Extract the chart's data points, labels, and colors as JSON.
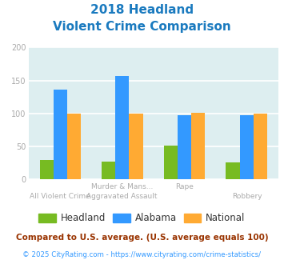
{
  "title_line1": "2018 Headland",
  "title_line2": "Violent Crime Comparison",
  "title_color": "#1a7abf",
  "row1_labels": [
    "",
    "Murder & Mans...",
    "Rape",
    ""
  ],
  "row2_labels": [
    "All Violent Crime",
    "Aggravated Assault",
    "",
    "Robbery"
  ],
  "headland": [
    29,
    27,
    51,
    26
  ],
  "alabama": [
    136,
    157,
    97,
    98
  ],
  "national": [
    100,
    100,
    101,
    100
  ],
  "headland_color": "#77bb22",
  "alabama_color": "#3399ff",
  "national_color": "#ffaa33",
  "ylim": [
    0,
    200
  ],
  "yticks": [
    0,
    50,
    100,
    150,
    200
  ],
  "bar_width": 0.22,
  "plot_bg": "#ddeef0",
  "grid_color": "#ffffff",
  "legend_labels": [
    "Headland",
    "Alabama",
    "National"
  ],
  "legend_text_color": "#333333",
  "footnote1": "Compared to U.S. average. (U.S. average equals 100)",
  "footnote2": "© 2025 CityRating.com - https://www.cityrating.com/crime-statistics/",
  "footnote1_color": "#993300",
  "footnote2_color": "#3399ff",
  "tick_color": "#aaaaaa",
  "xlabel_color": "#aaaaaa"
}
